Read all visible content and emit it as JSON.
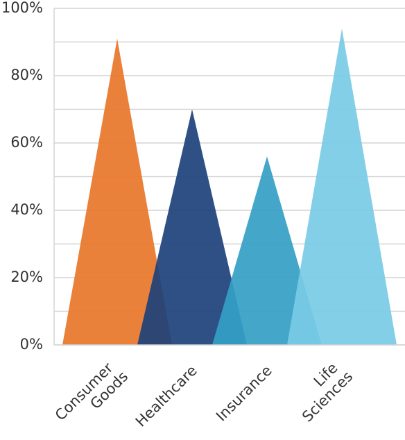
{
  "chart_data": {
    "type": "triangle-bar",
    "categories": [
      "Consumer Goods",
      "Healthcare",
      "Insurance",
      "Life Sciences"
    ],
    "series": [
      {
        "values": [
          91,
          70,
          56,
          94
        ]
      }
    ],
    "colors": [
      "#e8762a",
      "#1d4179",
      "#34a0c6",
      "#7acbe6"
    ],
    "ylim": [
      0,
      100
    ],
    "yticks": [
      {
        "value": 0,
        "label": "0%"
      },
      {
        "value": 20,
        "label": "20%"
      },
      {
        "value": 40,
        "label": "40%"
      },
      {
        "value": 60,
        "label": "60%"
      },
      {
        "value": 80,
        "label": "80%"
      },
      {
        "value": 100,
        "label": "100%"
      }
    ],
    "minor_yticks": [
      10,
      30,
      50,
      70,
      90
    ],
    "grid": true
  }
}
